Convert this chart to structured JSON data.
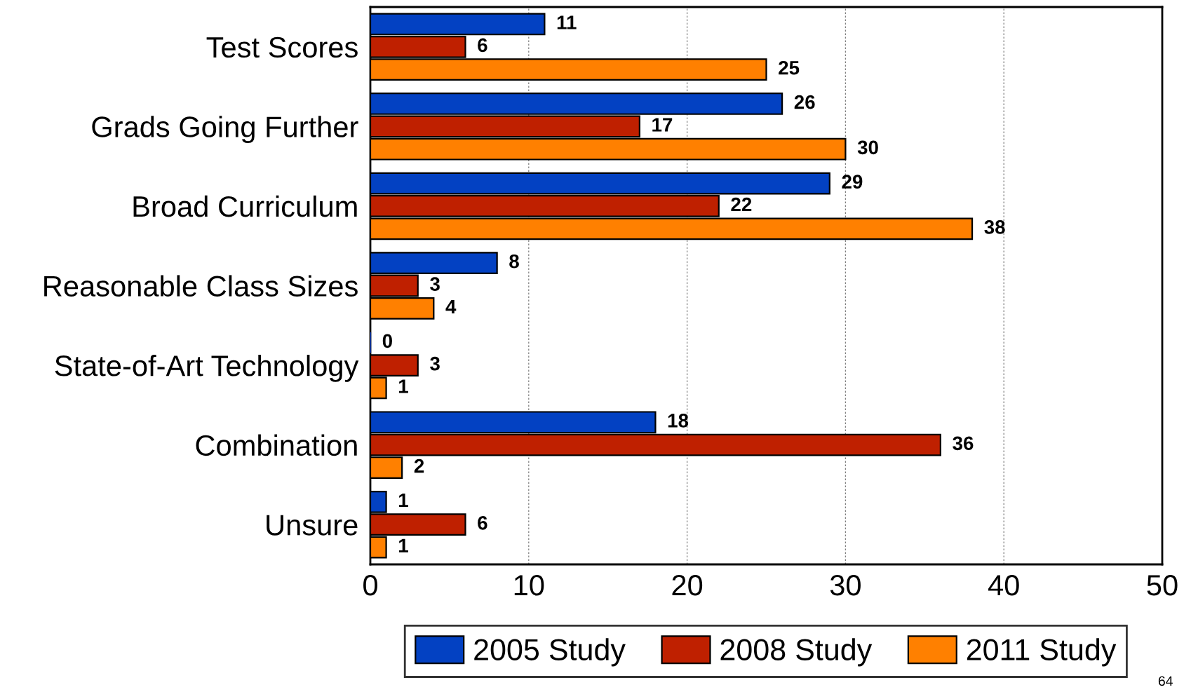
{
  "chart_data": {
    "type": "bar",
    "orientation": "horizontal",
    "categories": [
      "Test Scores",
      "Grads Going Further",
      "Broad Curriculum",
      "Reasonable Class Sizes",
      "State-of-Art Technology",
      "Combination",
      "Unsure"
    ],
    "series": [
      {
        "name": "2005 Study",
        "color": "#0341c2",
        "values": [
          11,
          26,
          29,
          8,
          0,
          18,
          1
        ]
      },
      {
        "name": "2008 Study",
        "color": "#bf2000",
        "values": [
          6,
          17,
          22,
          3,
          3,
          36,
          6
        ]
      },
      {
        "name": "2011 Study",
        "color": "#ff8000",
        "values": [
          25,
          30,
          38,
          4,
          1,
          2,
          1
        ]
      }
    ],
    "xlim": [
      0,
      50
    ],
    "xticks": [
      0,
      10,
      20,
      30,
      40,
      50
    ],
    "grid": "x",
    "legend": "bottom",
    "data_labels": true,
    "annotations": [
      "64"
    ]
  }
}
